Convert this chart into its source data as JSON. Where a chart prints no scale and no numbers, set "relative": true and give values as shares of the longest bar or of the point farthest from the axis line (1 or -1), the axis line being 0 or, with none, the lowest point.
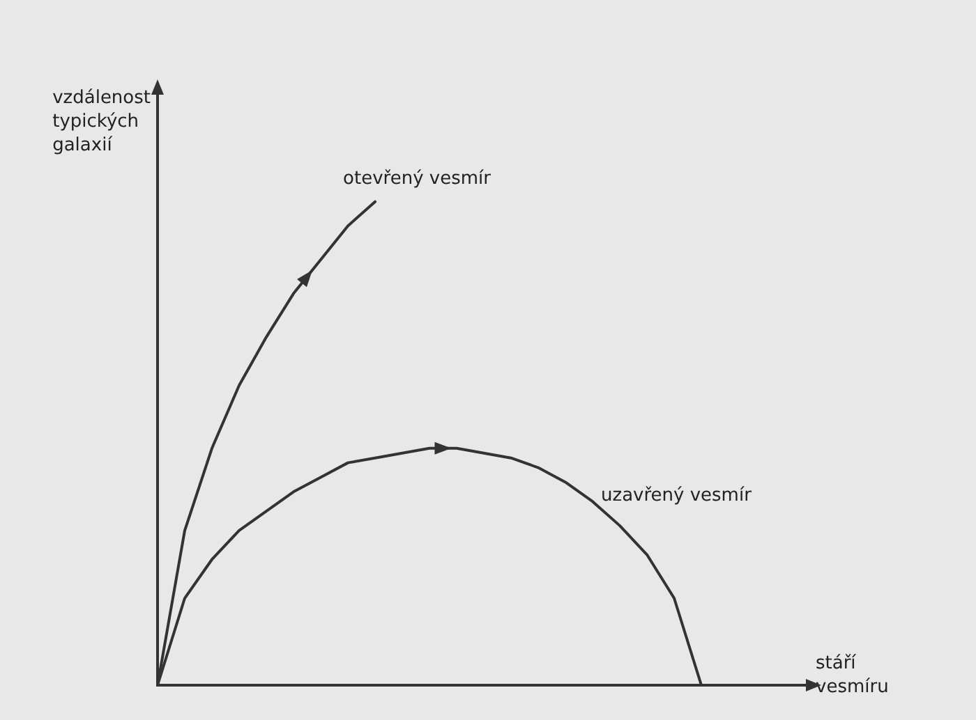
{
  "chart_data": {
    "type": "line",
    "relative": true,
    "xlabel": "stáří vesmíru",
    "ylabel": "vzdálenost typických galaxií",
    "categories": [
      null,
      null,
      null,
      null,
      null,
      null,
      null,
      null,
      null,
      null,
      null,
      null,
      null,
      null,
      null,
      null,
      null,
      null,
      null,
      null,
      null,
      null,
      null,
      null,
      null
    ],
    "series": [
      {
        "name": "otevřený vesmír",
        "color": "#333333",
        "values": [
          0,
          0.32,
          0.49,
          0.62,
          0.72,
          0.81,
          0.88,
          0.95,
          1,
          null,
          null,
          null,
          null,
          null,
          null,
          null,
          null,
          null,
          null,
          null,
          null,
          null,
          null,
          null,
          null
        ]
      },
      {
        "name": "uzavřený vesmír",
        "color": "#333333",
        "values": [
          0,
          0.18,
          0.26,
          0.32,
          0.36,
          0.4,
          0.43,
          0.46,
          0.47,
          0.48,
          0.49,
          0.49,
          0.48,
          0.47,
          0.45,
          0.42,
          0.38,
          0.33,
          0.27,
          0.18,
          0,
          null,
          null,
          null,
          null
        ]
      }
    ],
    "grid": false,
    "legend": false,
    "marker": "none",
    "line_style": "solid"
  }
}
